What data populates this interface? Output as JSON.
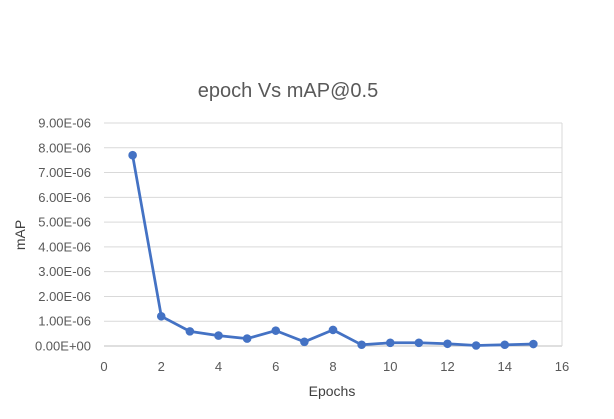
{
  "chart_data": {
    "type": "line",
    "title": "epoch Vs mAP@0.5",
    "xlabel": "Epochs",
    "ylabel": "mAP",
    "xlim": [
      0,
      16
    ],
    "ylim": [
      0,
      9e-06
    ],
    "x_ticks": [
      "0",
      "2",
      "4",
      "6",
      "8",
      "10",
      "12",
      "14",
      "16"
    ],
    "y_ticks": [
      "0.00E+00",
      "1.00E-06",
      "2.00E-06",
      "3.00E-06",
      "4.00E-06",
      "5.00E-06",
      "6.00E-06",
      "7.00E-06",
      "8.00E-06",
      "9.00E-06"
    ],
    "grid": true,
    "legend": "none",
    "series": [
      {
        "color": "#4472C4",
        "x": [
          1,
          2,
          3,
          4,
          5,
          6,
          7,
          8,
          9,
          10,
          11,
          12,
          13,
          14,
          15
        ],
        "y": [
          7.7e-06,
          1.2e-06,
          5.9e-07,
          4.2e-07,
          3e-07,
          6.2e-07,
          1.7e-07,
          6.5e-07,
          5e-08,
          1.3e-07,
          1.3e-07,
          9e-08,
          2e-08,
          5e-08,
          8e-08
        ]
      }
    ]
  }
}
